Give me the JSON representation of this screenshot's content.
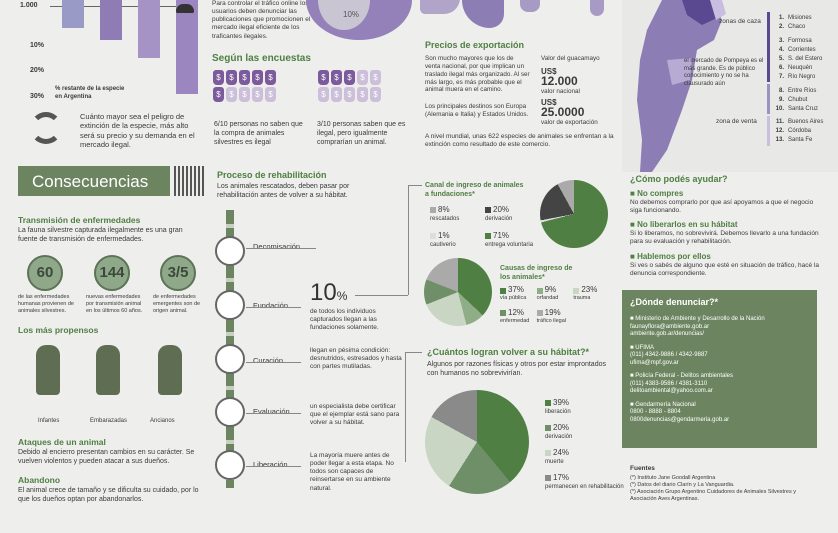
{
  "top_left": {
    "ticks": [
      "1.000",
      "10%",
      "20%",
      "30%"
    ],
    "caption": "% restante de la especie en Argentina",
    "extinction_text": "Cuánto mayor sea el peligro de extinción de la especie, más alto será su precio y su demanda en el mercado ilegal."
  },
  "top_mid": {
    "intro": "Para controlar el tráfico online los usuarios deben denunciar las publicaciones que promocionen el mercado ilegal eficiente de los traficantes ilegales.",
    "pie_label": "10%"
  },
  "surveys": {
    "title": "Según las encuestas",
    "stat1": "6/10 personas no saben que la compra de animales silvestres es ilegal",
    "stat2": "3/10 personas saben que es ilegal, pero igualmente comprarían un animal."
  },
  "export": {
    "title": "Precios de exportación",
    "text1": "Son mucho mayores que los de venta nacional, por que implican un traslado ilegal más organizado. Al ser más largo, es más probable que el animal muera en el camino.",
    "text2": "Los principales destinos son Europa (Alemania e Italia) y Estados Unidos.",
    "guacamayo": "Valor del guacamayo",
    "price1": "12.000",
    "price1_label": "valor nacional",
    "price2": "25.0000",
    "price2_label": "valor de exportación",
    "currency": "US$",
    "text3": "A nivel mundial, unas 622 especies de animales se enfrentan a la extinción como resultado de este comercio."
  },
  "map": {
    "zone_hunt": "zonas de caza",
    "zone_sale": "zona de venta",
    "note": "el mercado de Pompeya es el más grande. Es de público conocimiento y no se ha clausurado aún",
    "hunt": [
      [
        "1.",
        "Misiones"
      ],
      [
        "2.",
        "Chaco"
      ],
      [
        "3.",
        "Formosa"
      ],
      [
        "4.",
        "Corrientes"
      ],
      [
        "5.",
        "S. del Estero"
      ],
      [
        "6.",
        "Neuquén"
      ],
      [
        "7.",
        "Río Negro"
      ],
      [
        "8.",
        "Entre Ríos"
      ],
      [
        "9.",
        "Chubut"
      ],
      [
        "10.",
        "Santa Cruz"
      ]
    ],
    "sale": [
      [
        "11.",
        "Buenos Aires"
      ],
      [
        "12.",
        "Córdoba"
      ],
      [
        "13.",
        "Santa Fe"
      ]
    ]
  },
  "consequences": {
    "banner": "Consecuencias",
    "transmission_title": "Transmisión de enfermedades",
    "transmission_text": "La fauna silvestre capturada ilegalmente es una gran fuente de transmisión de enfermedades.",
    "stats": [
      {
        "value": "60",
        "text": "de las enfermedades humanas provienen de animales silvestres."
      },
      {
        "value": "144",
        "text": "nuevas enfermedades por transmisión animal en los últimos 60 años."
      },
      {
        "value": "3/5",
        "text": "de enfermedades emergentes son de origen animal."
      }
    ],
    "prone_title": "Los más propensos",
    "prone": [
      "Infantes",
      "Embarazadas",
      "Ancianos"
    ],
    "attack_title": "Ataques de un animal",
    "attack_text": "Debido al encierro presentan cambios en su carácter. Se vuelven violentos y pueden atacar a sus dueños.",
    "abandon_title": "Abandono",
    "abandon_text": "El animal crece de tamaño y se dificulta su cuidado, por lo que los dueños optan por abandonarlos."
  },
  "rehab": {
    "title": "Proceso de rehabilitación",
    "intro": "Los animales rescatados, deben pasar por rehabilitación antes de volver a su hábitat.",
    "steps": [
      "Decomisación",
      "Fundación",
      "Curación",
      "Evaluación",
      "Liberación"
    ],
    "big": "10",
    "big_unit": "%",
    "big_text": "de todos los individuos capturados llegan a las fundaciones solamente.",
    "curacion_text": "llegan en pésima condición: desnutridos, estresados y hasta con partes mutiladas.",
    "evaluacion_text": "un especialista debe certificar que el ejemplar está sano para volver a su hábitat.",
    "liberacion_text": "La mayoría muere antes de poder llegar a esta etapa. No todos son capaces de reinsertarse en su ambiente natural."
  },
  "channel": {
    "title": "Canal de ingreso de animales a fundaciones*",
    "items": [
      [
        "8%",
        "rescatados"
      ],
      [
        "20%",
        "derivación"
      ],
      [
        "1%",
        "cautiverio"
      ],
      [
        "71%",
        "entrega voluntaria"
      ]
    ]
  },
  "causes": {
    "title": "Causas de ingreso de los animales*",
    "items": [
      [
        "37%",
        "vía pública"
      ],
      [
        "9%",
        "orfandad"
      ],
      [
        "23%",
        "trauma"
      ],
      [
        "12%",
        "enfermedad"
      ],
      [
        "19%",
        "tráfico ilegal"
      ]
    ]
  },
  "return": {
    "title": "¿Cuántos logran volver a su hábitat?*",
    "text": "Algunos por razones físicas y otros por estar improntados con humanos no sobrevivirían.",
    "items": [
      [
        "39%",
        "liberación"
      ],
      [
        "20%",
        "derivación"
      ],
      [
        "24%",
        "muerte"
      ],
      [
        "17%",
        "permanecen en rehabilitación"
      ]
    ]
  },
  "help": {
    "title": "¿Cómo podés ayudar?",
    "items": [
      {
        "h": "No compres",
        "t": "No debemos comprarlo por que así apoyamos a que el negocio siga funcionando."
      },
      {
        "h": "No liberarlos en su hábitat",
        "t": "Si lo liberamos, no sobrevivirá. Debemos llevarlo a una fundación para su evaluación y rehabilitación."
      },
      {
        "h": "Hablemos por ellos",
        "t": "Si ves o sabés de alguno que esté en situación de tráfico, hacé la denuncia correspondiente."
      }
    ]
  },
  "report": {
    "title": "¿Dónde denunciar?*",
    "items": [
      {
        "h": "Ministerio de Ambiente y Desarrollo de la Nación",
        "l": [
          "faunayflora@ambiente.gob.ar",
          "ambiente.gob.ar/denuncias/"
        ]
      },
      {
        "h": "UFIMA",
        "l": [
          "(011) 4342-9886 / 4342-9887",
          "ufima@mpf.gov.ar"
        ]
      },
      {
        "h": "Policía Federal - Delitos ambientales",
        "l": [
          "(011) 4383-9586 / 4381-3110",
          "delitoambiental@yahoo.com.ar"
        ]
      },
      {
        "h": "Gendarmería Nacional",
        "l": [
          "0800 - 8888 - 8804",
          "0800denuncias@gendarmeria.gob.ar"
        ]
      }
    ]
  },
  "sources": {
    "title": "Fuentes",
    "items": [
      "(*) Instituto Jane Goodall Argentina",
      "(*) Datos del diario Clarín y La Vanguardia.",
      "(*) Asociación Grupo Argentino Cuidadores de Animales Silvestres y Asociación Aves Argentinas."
    ]
  }
}
